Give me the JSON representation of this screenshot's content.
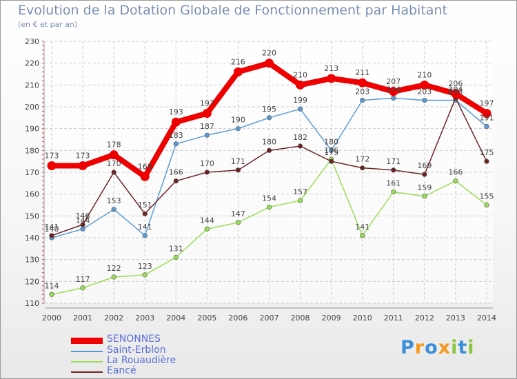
{
  "chart_data": {
    "type": "line",
    "title": "Evolution de la Dotation Globale de Fonctionnement par Habitant",
    "subtitle": "(en € et par an)",
    "categories": [
      "2000",
      "2001",
      "2002",
      "2003",
      "2004",
      "2005",
      "2006",
      "2007",
      "2008",
      "2009",
      "2010",
      "2011",
      "2012",
      "2013",
      "2014"
    ],
    "ylim": [
      110,
      230
    ],
    "yticks": [
      110,
      120,
      130,
      140,
      150,
      160,
      170,
      180,
      190,
      200,
      210,
      220,
      230
    ],
    "grid": true,
    "legend_position": "bottom-left",
    "series": [
      {
        "name": "SENONNES",
        "color": "#ee0000",
        "values": [
          173,
          173,
          178,
          168,
          193,
          197,
          216,
          220,
          210,
          213,
          211,
          207,
          210,
          206,
          197
        ]
      },
      {
        "name": "Saint-Erblon",
        "color": "#5b9bd5",
        "values": [
          140,
          144,
          153,
          141,
          183,
          187,
          190,
          195,
          199,
          180,
          203,
          204,
          203,
          203,
          191
        ]
      },
      {
        "name": "La Rouaudière",
        "color": "#99dd55",
        "values": [
          114,
          117,
          122,
          123,
          131,
          144,
          147,
          154,
          157,
          176,
          141,
          161,
          159,
          166,
          155
        ]
      },
      {
        "name": "Eancé",
        "color": "#6b2424",
        "values": [
          141,
          146,
          170,
          151,
          166,
          170,
          171,
          180,
          182,
          175,
          172,
          171,
          169,
          204,
          175
        ]
      }
    ]
  },
  "logo": {
    "letters": [
      "P",
      "r",
      "o",
      "x",
      "i",
      "t",
      "i"
    ],
    "colors": [
      "#3a8fd8",
      "#f39a1e",
      "#3a8fd8",
      "#f39a1e",
      "#8bc53f",
      "#3a8fd8",
      "#8bc53f"
    ]
  }
}
